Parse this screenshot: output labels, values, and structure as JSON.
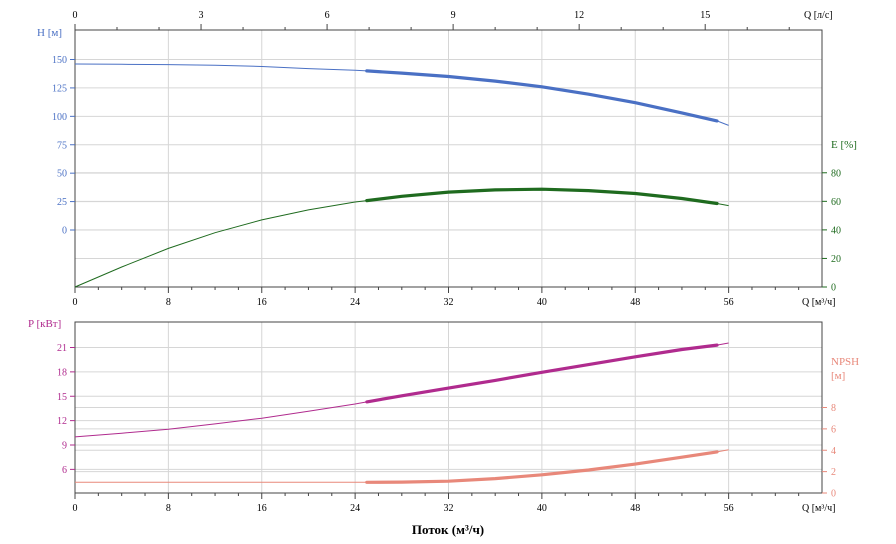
{
  "x_title": "Поток (м³/ч)",
  "chart_data": [
    {
      "type": "line",
      "x_axis": {
        "label": "Q [м³/ч]",
        "range": [
          0,
          64
        ],
        "ticks": [
          "0",
          "8",
          "16",
          "24",
          "32",
          "40",
          "48",
          "56"
        ]
      },
      "top_axis": {
        "label": "Q [л/с]",
        "range": [
          0,
          17.78
        ],
        "ticks": [
          "0",
          "3",
          "6",
          "9",
          "12",
          "15"
        ]
      },
      "left_axis": {
        "label": "H [м]",
        "ticks": [
          "0",
          "25",
          "50",
          "75",
          "100",
          "125",
          "150"
        ],
        "color": "#4a70c4"
      },
      "right_axis": {
        "label": "E [%]",
        "range": [
          0,
          180
        ],
        "ticks": [
          "0",
          "20",
          "40",
          "60",
          "80"
        ],
        "color": "#1f6b1f"
      },
      "grid": true,
      "series": [
        {
          "name": "H",
          "axis": "left",
          "color": "#4a70c4",
          "x": [
            0,
            4,
            8,
            12,
            16,
            20,
            24,
            25,
            28,
            32,
            36,
            40,
            44,
            48,
            52,
            55,
            56
          ],
          "y": [
            146.0,
            145.8,
            145.5,
            145.0,
            143.8,
            142.0,
            140.5,
            140.0,
            138.0,
            135.0,
            131.0,
            126.0,
            119.5,
            112.0,
            103.0,
            96.0,
            92.0
          ],
          "operating_range": [
            25,
            55
          ]
        },
        {
          "name": "E",
          "axis": "right",
          "color": "#1f6b1f",
          "x": [
            0,
            4,
            8,
            12,
            16,
            20,
            24,
            25,
            28,
            32,
            36,
            40,
            44,
            48,
            52,
            55,
            56
          ],
          "y": [
            0,
            14,
            27,
            38,
            47,
            54,
            59.5,
            60.5,
            63.5,
            66.5,
            68.0,
            68.5,
            67.5,
            65.5,
            62.0,
            58.5,
            57.0
          ],
          "operating_range": [
            25,
            55
          ]
        }
      ]
    },
    {
      "type": "line",
      "x_axis": {
        "label": "Q [м³/ч]",
        "range": [
          0,
          64
        ],
        "ticks": [
          "0",
          "8",
          "16",
          "24",
          "32",
          "40",
          "48",
          "56"
        ]
      },
      "left_axis": {
        "label": "P [кВт]",
        "ticks": [
          "6",
          "9",
          "12",
          "15",
          "18",
          "21"
        ],
        "color": "#b02b8e"
      },
      "right_axis": {
        "label_line1": "NPSH",
        "label_line2": "[м]",
        "range": [
          0,
          16
        ],
        "ticks": [
          "0",
          "2",
          "4",
          "6",
          "8"
        ],
        "color": "#e8887a"
      },
      "grid": true,
      "series": [
        {
          "name": "P",
          "axis": "left",
          "color": "#b02b8e",
          "x": [
            0,
            4,
            8,
            12,
            16,
            20,
            24,
            25,
            28,
            32,
            36,
            40,
            44,
            48,
            52,
            55,
            56
          ],
          "y": [
            10.0,
            10.45,
            10.95,
            11.6,
            12.3,
            13.15,
            14.05,
            14.3,
            15.05,
            16.0,
            16.95,
            17.95,
            18.9,
            19.85,
            20.75,
            21.3,
            21.55
          ],
          "operating_range": [
            25,
            55
          ]
        },
        {
          "name": "NPSH",
          "axis": "right",
          "color": "#e8887a",
          "x": [
            0,
            4,
            8,
            12,
            16,
            20,
            24,
            25,
            28,
            32,
            36,
            40,
            44,
            48,
            52,
            55,
            56
          ],
          "y": [
            1.0,
            1.0,
            1.0,
            1.0,
            1.0,
            1.0,
            1.0,
            1.0,
            1.02,
            1.1,
            1.35,
            1.7,
            2.15,
            2.7,
            3.35,
            3.85,
            4.05
          ],
          "operating_range": [
            25,
            55
          ]
        }
      ]
    }
  ]
}
